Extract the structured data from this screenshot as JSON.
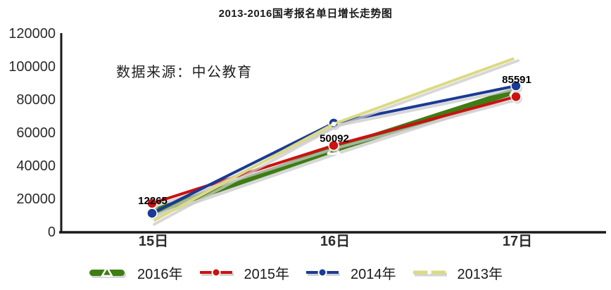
{
  "chart_data": {
    "type": "line",
    "title": "2013-2016国考报名单日增长走势图",
    "source_note": "数据来源：中公教育",
    "categories": [
      "15日",
      "16日",
      "17日"
    ],
    "y_axis": {
      "min": 0,
      "max": 120000,
      "step": 20000,
      "tick_labels": [
        "0",
        "20000",
        "40000",
        "60000",
        "80000",
        "100000",
        "120000"
      ]
    },
    "series": [
      {
        "name": "2016年",
        "color": "#3e7d14",
        "marker": "white-triangle",
        "emphasis": true,
        "values": [
          12265,
          50092,
          85591
        ],
        "data_labels": [
          "12265",
          "50092",
          "85591"
        ]
      },
      {
        "name": "2015年",
        "color": "#cc1111",
        "marker": "filled-circle",
        "emphasis": false,
        "values": [
          17500,
          52500,
          82000
        ]
      },
      {
        "name": "2014年",
        "color": "#1a3a94",
        "marker": "filled-circle",
        "emphasis": false,
        "values": [
          11500,
          66000,
          88500
        ]
      },
      {
        "name": "2013年",
        "color": "#dcda82",
        "marker": "white-dot",
        "emphasis": false,
        "values": [
          6500,
          65500,
          105500
        ]
      }
    ],
    "legend_position": "bottom",
    "grid": false,
    "axis_color": "#1a1a1a",
    "shadow_color": "#c9c9c9",
    "label_color": "#000000"
  }
}
